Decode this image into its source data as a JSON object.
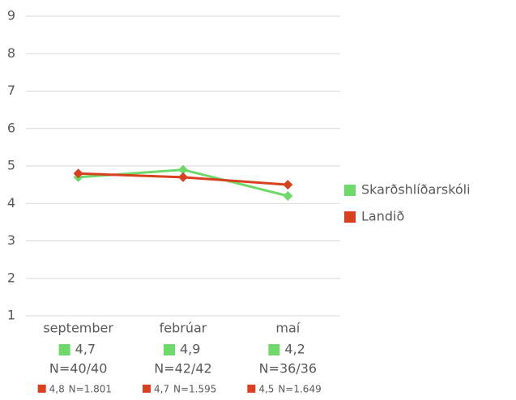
{
  "chart_data": {
    "type": "line",
    "categories": [
      "september",
      "febrúar",
      "maí"
    ],
    "ylim": [
      1,
      9
    ],
    "yticks": [
      1,
      2,
      3,
      4,
      5,
      6,
      7,
      8,
      9
    ],
    "grid": true,
    "legend": "right",
    "series": [
      {
        "name": "Skarðshlíðarskóli",
        "color": "#6fd86a",
        "values": [
          4.7,
          4.9,
          4.2
        ],
        "value_labels": [
          "4,7",
          "4,9",
          "4,2"
        ],
        "n_labels": [
          "N=40/40",
          "N=42/42",
          "N=36/36"
        ]
      },
      {
        "name": "Landið",
        "color": "#d8411f",
        "values": [
          4.8,
          4.7,
          4.5
        ],
        "value_labels": [
          "4,8",
          "4,7",
          "4,5"
        ],
        "n_labels": [
          "N=1.801",
          "N=1.595",
          "N=1.649"
        ]
      }
    ]
  }
}
